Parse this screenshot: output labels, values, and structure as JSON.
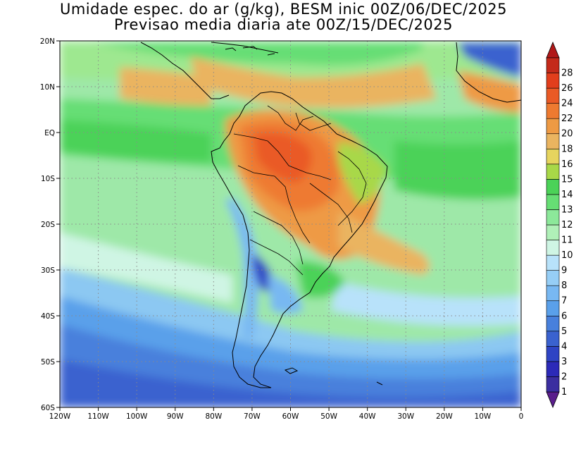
{
  "title": {
    "line1": "Umidade espec. do ar (g/kg), BESM inic 00Z/06/DEC/2025",
    "line2": "Previsao media diaria ate 00Z/15/DEC/2025"
  },
  "map": {
    "lon_range": [
      -120,
      0
    ],
    "lat_range": [
      -60,
      20
    ],
    "lon_ticks": [
      {
        "value": -120,
        "label": "120W"
      },
      {
        "value": -110,
        "label": "110W"
      },
      {
        "value": -100,
        "label": "100W"
      },
      {
        "value": -90,
        "label": "90W"
      },
      {
        "value": -80,
        "label": "80W"
      },
      {
        "value": -70,
        "label": "70W"
      },
      {
        "value": -60,
        "label": "60W"
      },
      {
        "value": -50,
        "label": "50W"
      },
      {
        "value": -40,
        "label": "40W"
      },
      {
        "value": -30,
        "label": "30W"
      },
      {
        "value": -20,
        "label": "20W"
      },
      {
        "value": -10,
        "label": "10W"
      },
      {
        "value": 0,
        "label": "0"
      }
    ],
    "lat_ticks": [
      {
        "value": 20,
        "label": "20N"
      },
      {
        "value": 10,
        "label": "10N"
      },
      {
        "value": 0,
        "label": "EQ"
      },
      {
        "value": -10,
        "label": "10S"
      },
      {
        "value": -20,
        "label": "20S"
      },
      {
        "value": -30,
        "label": "30S"
      },
      {
        "value": -40,
        "label": "40S"
      },
      {
        "value": -50,
        "label": "50S"
      },
      {
        "value": -60,
        "label": "60S"
      }
    ],
    "gridlines": "dotted"
  },
  "colorbar": {
    "levels": [
      {
        "label": "1",
        "color": "#3b2ea0"
      },
      {
        "label": "2",
        "color": "#2c2ab8"
      },
      {
        "label": "3",
        "color": "#2e44c4"
      },
      {
        "label": "4",
        "color": "#3a62cf"
      },
      {
        "label": "5",
        "color": "#4880dc"
      },
      {
        "label": "6",
        "color": "#5aa0ea"
      },
      {
        "label": "7",
        "color": "#78b8f2"
      },
      {
        "label": "8",
        "color": "#96cef6"
      },
      {
        "label": "9",
        "color": "#b8e2fa"
      },
      {
        "label": "10",
        "color": "#cff5e4"
      },
      {
        "label": "11",
        "color": "#b0f0b8"
      },
      {
        "label": "12",
        "color": "#8ce89a"
      },
      {
        "label": "13",
        "color": "#66de74"
      },
      {
        "label": "14",
        "color": "#4bd258"
      },
      {
        "label": "15",
        "color": "#a8d848"
      },
      {
        "label": "16",
        "color": "#e6d45e"
      },
      {
        "label": "18",
        "color": "#eab460"
      },
      {
        "label": "20",
        "color": "#ee9a44"
      },
      {
        "label": "22",
        "color": "#ee7a30"
      },
      {
        "label": "24",
        "color": "#ea5a26"
      },
      {
        "label": "26",
        "color": "#e23e1c"
      },
      {
        "label": "28",
        "color": "#c42a1a"
      }
    ],
    "under_color": "#5a1e8c",
    "over_color": "#b01818"
  }
}
